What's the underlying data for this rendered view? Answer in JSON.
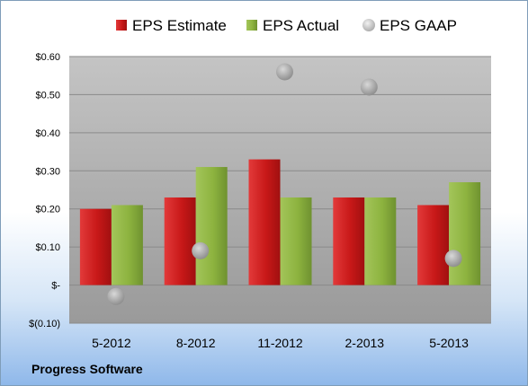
{
  "company": "Progress Software",
  "chart_data": {
    "type": "bar",
    "categories": [
      "5-2012",
      "8-2012",
      "11-2012",
      "2-2013",
      "5-2013"
    ],
    "series": [
      {
        "name": "EPS Estimate",
        "kind": "bar",
        "color": "#cc1f1f",
        "values": [
          0.2,
          0.23,
          0.33,
          0.23,
          0.21
        ]
      },
      {
        "name": "EPS Actual",
        "kind": "bar",
        "color": "#8db33f",
        "values": [
          0.21,
          0.31,
          0.23,
          0.23,
          0.27
        ]
      },
      {
        "name": "EPS GAAP",
        "kind": "scatter",
        "color": "#b9b9b9",
        "values": [
          -0.03,
          0.09,
          0.56,
          0.52,
          0.07
        ]
      }
    ],
    "ylim": [
      -0.1,
      0.6
    ],
    "yticks": [
      0.6,
      0.5,
      0.4,
      0.3,
      0.2,
      0.1,
      0,
      -0.1
    ],
    "ytick_labels": [
      "$0.60",
      "$0.50",
      "$0.40",
      "$0.30",
      "$0.20",
      "$0.10",
      "$-",
      "$(0.10)"
    ],
    "grid": true,
    "legend_position": "top"
  }
}
